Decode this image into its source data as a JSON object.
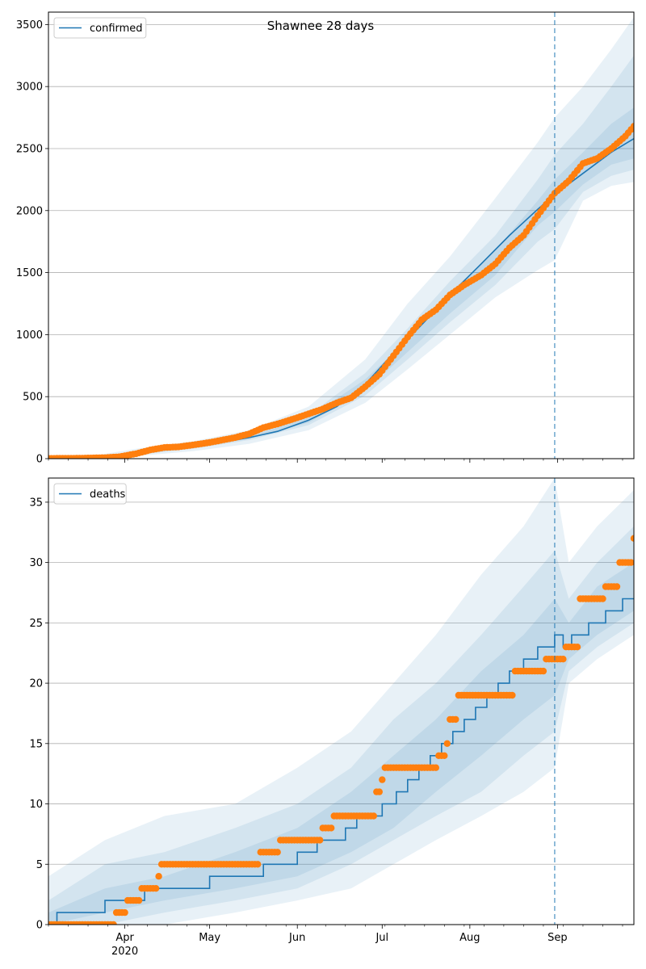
{
  "figure": {
    "title": "Shawnee 28 days"
  },
  "colors": {
    "model": "#1f77b4",
    "observed": "#ff7f0e",
    "band": "#1f77b4",
    "grid": "#b0b0b0",
    "forecast_line": "#1f77b4"
  },
  "chart_data": [
    {
      "type": "line",
      "title": "Shawnee 28 days",
      "legend": {
        "label": "confirmed",
        "placement": "top-left"
      },
      "xlabel": "",
      "ylabel": "",
      "x_ticks": [
        {
          "date": "2020-04-01",
          "label": "Apr",
          "year_label": "2020"
        },
        {
          "date": "2020-05-01",
          "label": "May",
          "year_label": ""
        },
        {
          "date": "2020-06-01",
          "label": "Jun",
          "year_label": ""
        },
        {
          "date": "2020-07-01",
          "label": "Jul",
          "year_label": ""
        },
        {
          "date": "2020-08-01",
          "label": "Aug",
          "year_label": ""
        },
        {
          "date": "2020-09-01",
          "label": "Sep",
          "year_label": ""
        }
      ],
      "show_x_labels": false,
      "xlim": [
        "2020-03-05",
        "2020-09-28"
      ],
      "ylim": [
        0,
        3600
      ],
      "y_ticks": [
        0,
        500,
        1000,
        1500,
        2000,
        2500,
        3000,
        3500
      ],
      "grid": "horizontal",
      "forecast_start": "2020-08-31",
      "model": {
        "dates": [
          "2020-03-05",
          "2020-03-15",
          "2020-03-25",
          "2020-04-05",
          "2020-04-15",
          "2020-04-25",
          "2020-05-05",
          "2020-05-15",
          "2020-05-25",
          "2020-06-05",
          "2020-06-15",
          "2020-06-25",
          "2020-07-05",
          "2020-07-15",
          "2020-07-25",
          "2020-08-05",
          "2020-08-15",
          "2020-08-25",
          "2020-08-31",
          "2020-09-10",
          "2020-09-20",
          "2020-09-28"
        ],
        "values": [
          0,
          1,
          10,
          45,
          80,
          100,
          130,
          170,
          220,
          310,
          420,
          600,
          850,
          1080,
          1320,
          1570,
          1800,
          2010,
          2130,
          2300,
          2470,
          2580
        ]
      },
      "bands": {
        "dates": [
          "2020-03-05",
          "2020-03-20",
          "2020-04-05",
          "2020-04-25",
          "2020-05-15",
          "2020-06-05",
          "2020-06-25",
          "2020-07-10",
          "2020-07-25",
          "2020-08-10",
          "2020-08-25",
          "2020-08-31",
          "2020-09-10",
          "2020-09-20",
          "2020-09-28"
        ],
        "outer_low": [
          0,
          0,
          20,
          60,
          120,
          230,
          450,
          720,
          1000,
          1300,
          1520,
          1600,
          2080,
          2200,
          2230
        ],
        "outer_high": [
          0,
          20,
          80,
          140,
          230,
          420,
          800,
          1250,
          1630,
          2100,
          2550,
          2750,
          3000,
          3300,
          3560
        ],
        "mid_low": [
          0,
          2,
          30,
          80,
          150,
          270,
          510,
          800,
          1100,
          1400,
          1750,
          1850,
          2150,
          2280,
          2330
        ],
        "mid_high": [
          0,
          10,
          60,
          120,
          195,
          350,
          690,
          1050,
          1430,
          1800,
          2250,
          2450,
          2700,
          3000,
          3250
        ],
        "inner_low": [
          0,
          4,
          38,
          90,
          160,
          290,
          550,
          860,
          1170,
          1480,
          1880,
          1990,
          2210,
          2370,
          2420
        ],
        "inner_high": [
          0,
          7,
          52,
          105,
          180,
          330,
          640,
          960,
          1340,
          1680,
          2080,
          2250,
          2470,
          2700,
          2830
        ]
      },
      "observed": {
        "dates": [
          "2020-03-05",
          "2020-03-15",
          "2020-03-25",
          "2020-03-30",
          "2020-04-05",
          "2020-04-10",
          "2020-04-15",
          "2020-04-20",
          "2020-04-25",
          "2020-05-01",
          "2020-05-10",
          "2020-05-15",
          "2020-05-20",
          "2020-05-25",
          "2020-06-01",
          "2020-06-10",
          "2020-06-15",
          "2020-06-20",
          "2020-06-25",
          "2020-06-30",
          "2020-07-05",
          "2020-07-10",
          "2020-07-15",
          "2020-07-20",
          "2020-07-25",
          "2020-07-30",
          "2020-08-05",
          "2020-08-10",
          "2020-08-15",
          "2020-08-20",
          "2020-08-25",
          "2020-08-31",
          "2020-09-05",
          "2020-09-10",
          "2020-09-15",
          "2020-09-20",
          "2020-09-25",
          "2020-09-28"
        ],
        "values": [
          2,
          3,
          8,
          15,
          40,
          70,
          90,
          95,
          110,
          130,
          170,
          200,
          250,
          280,
          330,
          400,
          450,
          490,
          580,
          680,
          830,
          980,
          1120,
          1200,
          1320,
          1400,
          1480,
          1570,
          1700,
          1800,
          1960,
          2140,
          2240,
          2380,
          2420,
          2500,
          2600,
          2680
        ]
      }
    },
    {
      "type": "line",
      "legend": {
        "label": "deaths",
        "placement": "top-left"
      },
      "xlabel": "",
      "ylabel": "",
      "x_ticks": [
        {
          "date": "2020-04-01",
          "label": "Apr",
          "year_label": "2020"
        },
        {
          "date": "2020-05-01",
          "label": "May",
          "year_label": ""
        },
        {
          "date": "2020-06-01",
          "label": "Jun",
          "year_label": ""
        },
        {
          "date": "2020-07-01",
          "label": "Jul",
          "year_label": ""
        },
        {
          "date": "2020-08-01",
          "label": "Aug",
          "year_label": ""
        },
        {
          "date": "2020-09-01",
          "label": "Sep",
          "year_label": ""
        }
      ],
      "show_x_labels": true,
      "xlim": [
        "2020-03-05",
        "2020-09-28"
      ],
      "ylim": [
        0,
        37
      ],
      "y_ticks": [
        0,
        5,
        10,
        15,
        20,
        25,
        30,
        35
      ],
      "grid": "horizontal",
      "forecast_start": "2020-08-31",
      "model": {
        "step": true,
        "dates": [
          "2020-03-05",
          "2020-03-08",
          "2020-03-25",
          "2020-04-08",
          "2020-04-15",
          "2020-05-01",
          "2020-05-10",
          "2020-05-20",
          "2020-06-01",
          "2020-06-08",
          "2020-06-12",
          "2020-06-18",
          "2020-06-22",
          "2020-06-26",
          "2020-07-01",
          "2020-07-06",
          "2020-07-10",
          "2020-07-14",
          "2020-07-18",
          "2020-07-22",
          "2020-07-26",
          "2020-07-30",
          "2020-08-03",
          "2020-08-07",
          "2020-08-11",
          "2020-08-15",
          "2020-08-20",
          "2020-08-25",
          "2020-08-31",
          "2020-09-03",
          "2020-09-06",
          "2020-09-12",
          "2020-09-18",
          "2020-09-24",
          "2020-09-28"
        ],
        "values": [
          0,
          1,
          2,
          3,
          3,
          4,
          4,
          5,
          6,
          7,
          7,
          8,
          9,
          9,
          10,
          11,
          12,
          13,
          14,
          15,
          16,
          17,
          18,
          19,
          20,
          21,
          22,
          23,
          24,
          23,
          24,
          25,
          26,
          27,
          27
        ]
      },
      "bands": {
        "dates": [
          "2020-03-05",
          "2020-03-25",
          "2020-04-15",
          "2020-05-10",
          "2020-06-01",
          "2020-06-20",
          "2020-07-05",
          "2020-07-20",
          "2020-08-05",
          "2020-08-20",
          "2020-08-31",
          "2020-09-05",
          "2020-09-15",
          "2020-09-28"
        ],
        "outer_low": [
          0,
          0,
          0,
          1,
          2,
          3,
          5,
          7,
          9,
          11,
          13,
          20,
          22,
          24
        ],
        "outer_high": [
          4,
          7,
          9,
          10,
          13,
          16,
          20,
          24,
          29,
          33,
          37,
          30,
          33,
          36
        ],
        "mid_low": [
          0,
          0,
          1,
          2,
          3,
          5,
          7,
          9,
          11,
          14,
          16,
          21,
          23,
          25
        ],
        "mid_high": [
          2,
          5,
          6,
          8,
          10,
          13,
          17,
          20,
          24,
          28,
          31,
          27,
          30,
          33
        ],
        "inner_low": [
          0,
          1,
          2,
          3,
          4,
          6,
          8,
          11,
          14,
          17,
          19,
          22,
          24,
          26
        ],
        "inner_high": [
          1,
          3,
          4,
          6,
          8,
          11,
          14,
          17,
          21,
          24,
          27,
          25,
          28,
          30
        ]
      },
      "observed": {
        "step_points": [
          [
            "2020-03-05",
            "2020-03-28",
            0
          ],
          [
            "2020-03-29",
            "2020-04-01",
            1
          ],
          [
            "2020-04-02",
            "2020-04-06",
            2
          ],
          [
            "2020-04-07",
            "2020-04-12",
            3
          ],
          [
            "2020-04-13",
            "2020-04-13",
            4
          ],
          [
            "2020-04-14",
            "2020-05-18",
            5
          ],
          [
            "2020-05-19",
            "2020-05-25",
            6
          ],
          [
            "2020-05-26",
            "2020-06-09",
            7
          ],
          [
            "2020-06-10",
            "2020-06-13",
            8
          ],
          [
            "2020-06-14",
            "2020-06-28",
            9
          ],
          [
            "2020-06-29",
            "2020-06-30",
            11
          ],
          [
            "2020-07-01",
            "2020-07-01",
            12
          ],
          [
            "2020-07-02",
            "2020-07-20",
            13
          ],
          [
            "2020-07-21",
            "2020-07-23",
            14
          ],
          [
            "2020-07-24",
            "2020-07-24",
            15
          ],
          [
            "2020-07-25",
            "2020-07-27",
            17
          ],
          [
            "2020-07-28",
            "2020-08-16",
            19
          ],
          [
            "2020-08-17",
            "2020-08-27",
            21
          ],
          [
            "2020-08-28",
            "2020-09-03",
            22
          ],
          [
            "2020-09-04",
            "2020-09-08",
            23
          ],
          [
            "2020-09-09",
            "2020-09-17",
            27
          ],
          [
            "2020-09-18",
            "2020-09-22",
            28
          ],
          [
            "2020-09-23",
            "2020-09-27",
            30
          ],
          [
            "2020-09-28",
            "2020-09-28",
            32
          ]
        ]
      }
    }
  ]
}
